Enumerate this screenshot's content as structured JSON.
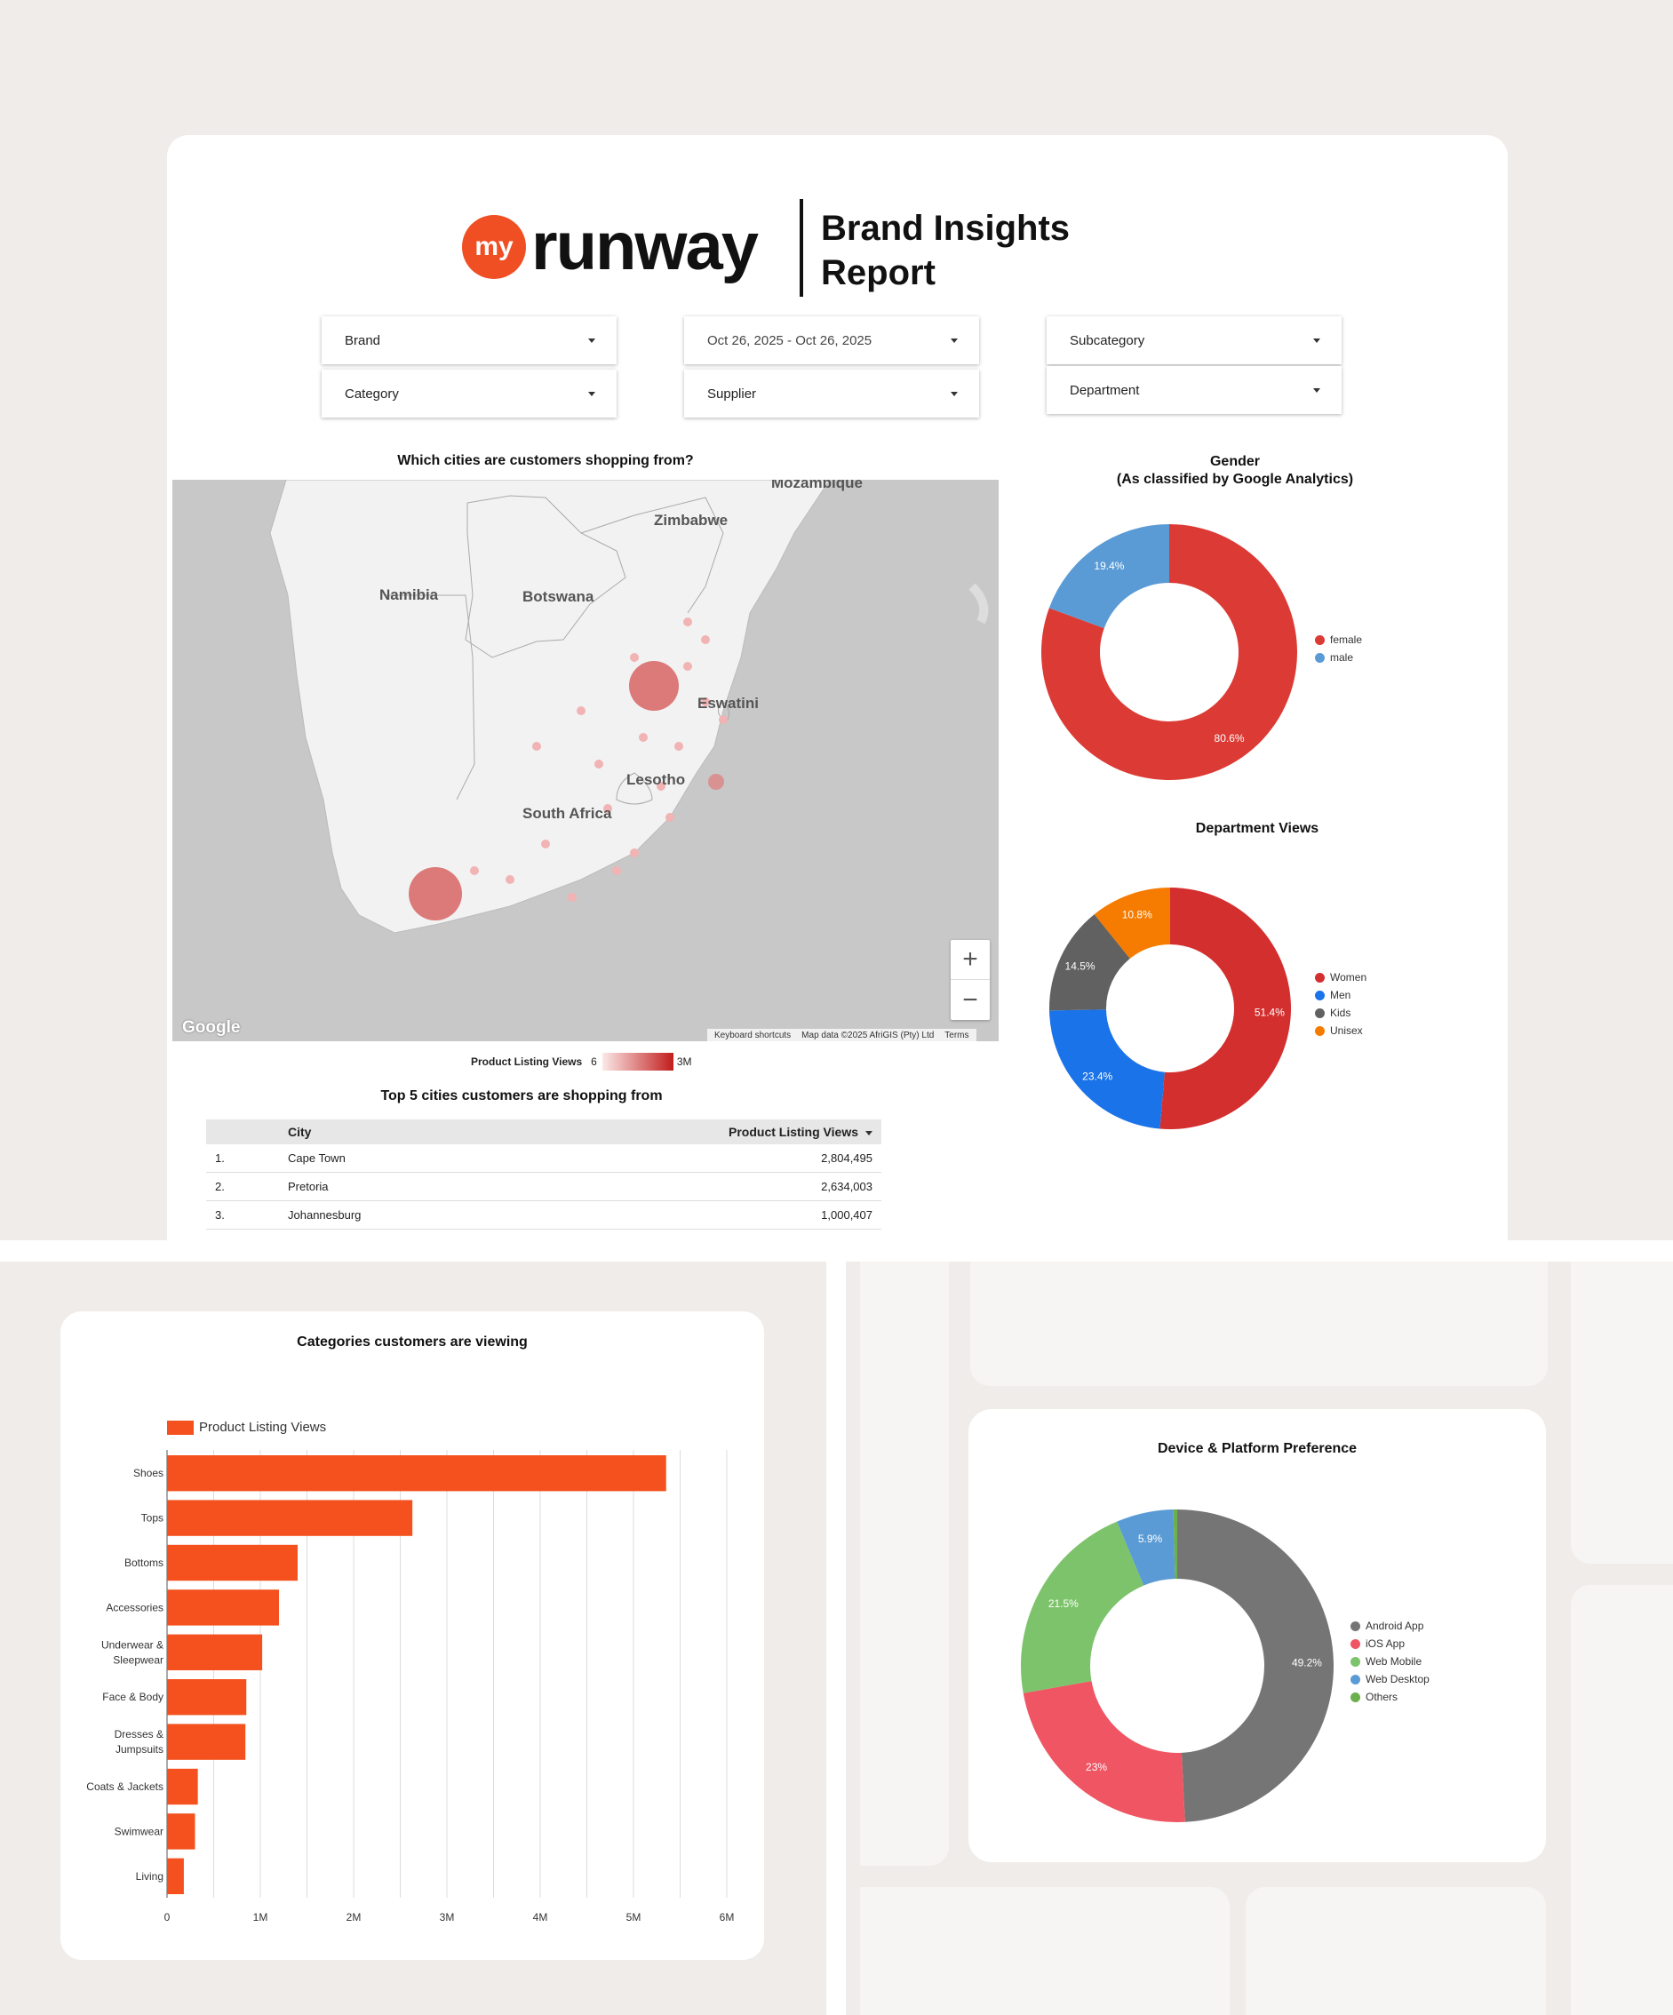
{
  "brand": {
    "logo_mark": "my",
    "logo_word": "runway",
    "report_title": "Brand Insights Report",
    "accent": "#f04e23"
  },
  "filters": {
    "brand": "Brand",
    "date_range": "Oct 26, 2025 - Oct 26, 2025",
    "subcategory": "Subcategory",
    "category": "Category",
    "supplier": "Supplier",
    "department": "Department"
  },
  "map": {
    "title": "Which cities are customers shopping from?",
    "labels": [
      "Mozambique",
      "Zimbabwe",
      "Namibia",
      "Botswana",
      "Eswatini",
      "Lesotho",
      "South Africa"
    ],
    "footer": [
      "Keyboard shortcuts",
      "Map data ©2025 AfriGIS (Pty) Ltd",
      "Terms"
    ],
    "google": "Google",
    "zoom_in": "+",
    "zoom_out": "−",
    "legend_label": "Product Listing Views",
    "legend_min": "6",
    "legend_max": "3M"
  },
  "cities_table": {
    "title": "Top 5 cities customers are shopping from",
    "headers": {
      "city": "City",
      "views": "Product Listing Views"
    },
    "rows": [
      {
        "idx": "1.",
        "city": "Cape Town",
        "views": "2,804,495"
      },
      {
        "idx": "2.",
        "city": "Pretoria",
        "views": "2,634,003"
      },
      {
        "idx": "3.",
        "city": "Johannesburg",
        "views": "1,000,407"
      }
    ]
  },
  "chart_data": [
    {
      "type": "pie",
      "title": "Gender\n(As classified by Google Analytics)",
      "title_lines": [
        "Gender",
        "(As classified by Google Analytics)"
      ],
      "labels": [
        "female",
        "male"
      ],
      "values": [
        80.6,
        19.4
      ],
      "value_labels": [
        "80.6%",
        "19.4%"
      ],
      "colors": [
        "#dc3a35",
        "#5b9bd5"
      ],
      "donut": true,
      "legend": "right"
    },
    {
      "type": "pie",
      "title": "Department Views",
      "labels": [
        "Women",
        "Men",
        "Kids",
        "Unisex"
      ],
      "values": [
        51.4,
        23.4,
        14.5,
        10.8
      ],
      "value_labels": [
        "51.4%",
        "23.4%",
        "14.5%",
        "10.8%"
      ],
      "colors": [
        "#d32f2f",
        "#1a73e8",
        "#616161",
        "#f57c00"
      ],
      "donut": true,
      "legend": "right"
    },
    {
      "type": "bar",
      "orientation": "horizontal",
      "title": "Categories customers are viewing",
      "categories": [
        "Shoes",
        "Tops",
        "Bottoms",
        "Accessories",
        "Underwear & Sleepwear",
        "Face & Body",
        "Dresses & Jumpsuits",
        "Coats & Jackets",
        "Swimwear",
        "Living"
      ],
      "category_lines": [
        [
          "Shoes"
        ],
        [
          "Tops"
        ],
        [
          "Bottoms"
        ],
        [
          "Accessories"
        ],
        [
          "Underwear &",
          "Sleepwear"
        ],
        [
          "Face & Body"
        ],
        [
          "Dresses &",
          "Jumpsuits"
        ],
        [
          "Coats & Jackets"
        ],
        [
          "Swimwear"
        ],
        [
          "Living"
        ]
      ],
      "series": [
        {
          "name": "Product Listing Views",
          "values": [
            5350000,
            2630000,
            1400000,
            1200000,
            1020000,
            850000,
            840000,
            330000,
            300000,
            180000
          ]
        }
      ],
      "xlim": [
        0,
        6000000
      ],
      "xticks": [
        0,
        1000000,
        2000000,
        3000000,
        4000000,
        5000000,
        6000000
      ],
      "xtick_labels": [
        "0",
        "1M",
        "2M",
        "3M",
        "4M",
        "5M",
        "6M"
      ],
      "color": "#f4511e",
      "grid": true,
      "legend": "top-left"
    },
    {
      "type": "pie",
      "title": "Device & Platform Preference",
      "labels": [
        "Android App",
        "iOS App",
        "Web Mobile",
        "Web Desktop",
        "Others"
      ],
      "values": [
        49.2,
        23,
        21.5,
        5.9,
        0.4
      ],
      "value_labels": [
        "49.2%",
        "23%",
        "21.5%",
        "5.9%",
        ""
      ],
      "colors": [
        "#757575",
        "#ef5563",
        "#7dc36b",
        "#5b9bd5",
        "#6ab04c"
      ],
      "donut": true,
      "legend": "right"
    }
  ]
}
